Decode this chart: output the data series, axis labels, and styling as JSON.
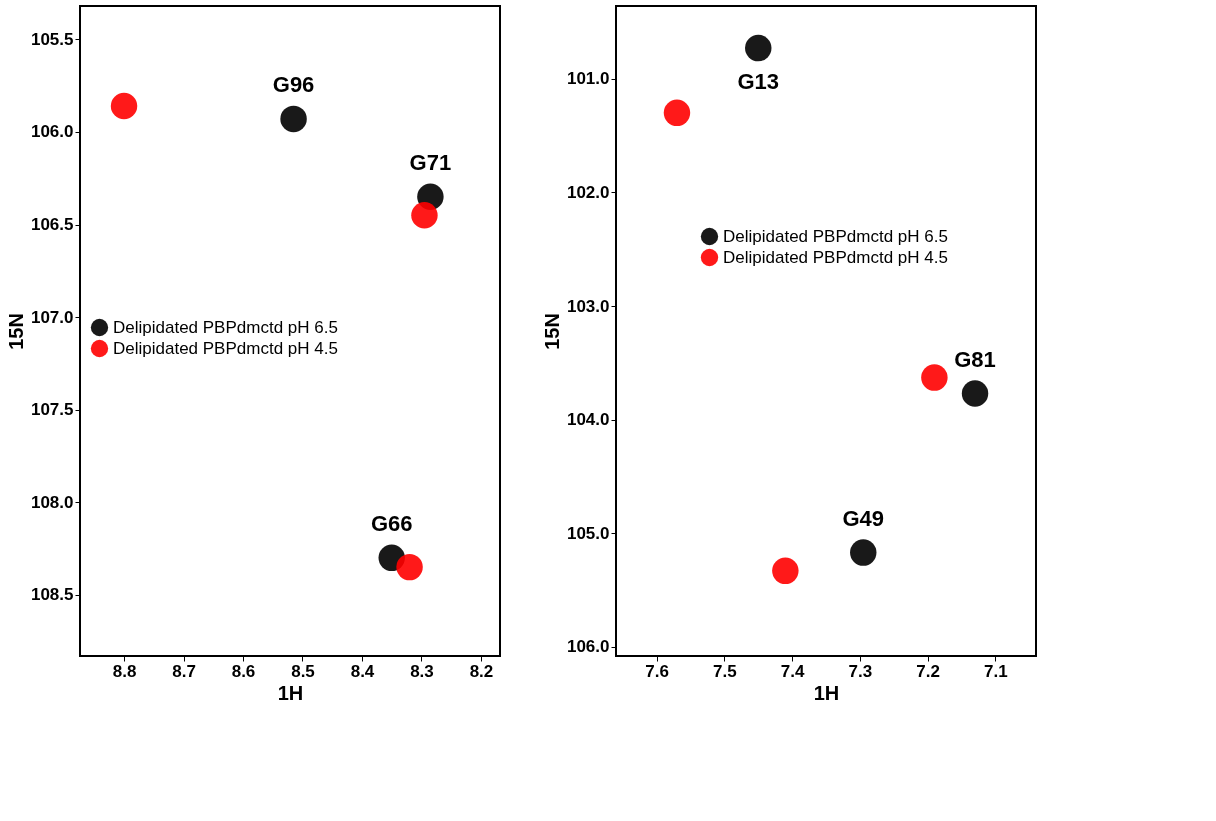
{
  "chart_data": [
    {
      "type": "scatter",
      "xlabel": "1H",
      "ylabel": "15N",
      "xlim": [
        8.874,
        8.168
      ],
      "ylim": [
        108.83,
        105.32
      ],
      "xticks": [
        8.8,
        8.7,
        8.6,
        8.5,
        8.4,
        8.3,
        8.2
      ],
      "yticks": [
        105.5,
        {
          "value": 106,
          "label": "106.0"
        },
        106.5,
        {
          "value": 107,
          "label": "107.0"
        },
        107.5,
        {
          "value": 108,
          "label": "108.0"
        },
        108.5
      ],
      "grid": false,
      "legend": "left",
      "marker": "circle",
      "series": [
        {
          "name": "Delipidated PBPdmctd pH 6.5",
          "color": "#000000",
          "x": [
            8.515,
            8.285,
            8.35
          ],
          "values": [
            105.93,
            106.35,
            108.3
          ]
        },
        {
          "name": "Delipidated PBPdmctd pH 4.5",
          "color": "#ff0000",
          "x": [
            8.8,
            8.295,
            8.32
          ],
          "values": [
            105.86,
            106.45,
            108.35
          ]
        }
      ],
      "annotations": [
        {
          "text": "G96",
          "x": 8.515,
          "y": 105.93
        },
        {
          "text": "G71",
          "x": 8.285,
          "y": 106.35
        },
        {
          "text": "G66",
          "x": 8.35,
          "y": 108.3
        }
      ]
    },
    {
      "type": "scatter",
      "xlabel": "1H",
      "ylabel": "15N",
      "xlim": [
        7.66,
        7.04
      ],
      "ylim": [
        106.08,
        100.36
      ],
      "xticks": [
        7.6,
        7.5,
        7.4,
        7.3,
        7.2,
        7.1
      ],
      "yticks": [
        {
          "value": 101,
          "label": "101.0"
        },
        {
          "value": 102,
          "label": "102.0"
        },
        {
          "value": 103,
          "label": "103.0"
        },
        {
          "value": 104,
          "label": "104.0"
        },
        {
          "value": 105,
          "label": "105.0"
        },
        {
          "value": 106,
          "label": "106.0"
        }
      ],
      "grid": false,
      "legend": "top",
      "marker": "circle",
      "series": [
        {
          "name": "Delipidated PBPdmctd pH 6.5",
          "color": "#000000",
          "x": [
            7.45,
            7.13,
            7.295
          ],
          "values": [
            100.73,
            103.77,
            105.17
          ]
        },
        {
          "name": "Delipidated PBPdmctd pH 4.5",
          "color": "#ff0000",
          "x": [
            7.57,
            7.19,
            7.41
          ],
          "values": [
            101.3,
            103.63,
            105.33
          ]
        }
      ],
      "annotations": [
        {
          "text": "G13",
          "x": 7.45,
          "y": 100.73
        },
        {
          "text": "G81",
          "x": 7.13,
          "y": 103.77
        },
        {
          "text": "G49",
          "x": 7.295,
          "y": 105.17
        }
      ]
    }
  ]
}
